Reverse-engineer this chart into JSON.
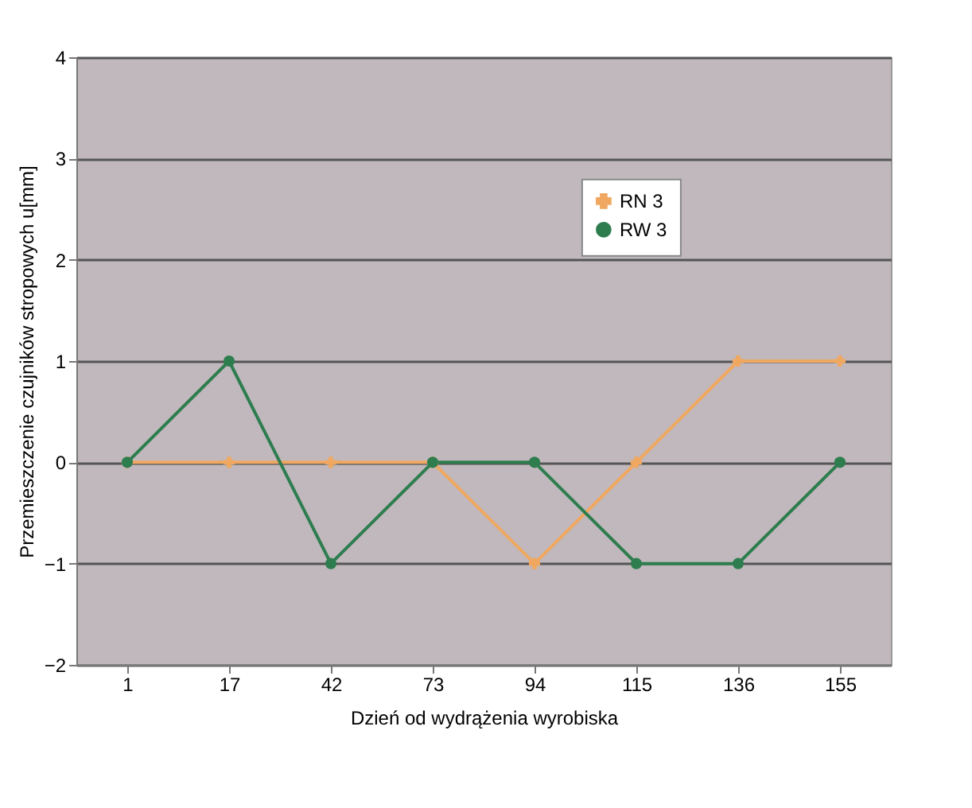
{
  "chart_data": {
    "type": "line",
    "xlabel": "Dzień od wydrążenia wyrobiska",
    "ylabel": "Przemieszczenie czujników stropowych u[mm]",
    "categories": [
      "1",
      "17",
      "42",
      "73",
      "94",
      "115",
      "136",
      "155"
    ],
    "series": [
      {
        "name": "RN 3",
        "color": "#f0a860",
        "marker": "cross",
        "values": [
          0,
          0,
          0,
          0,
          -1,
          0,
          1,
          1
        ]
      },
      {
        "name": "RW 3",
        "color": "#2e7d4f",
        "marker": "circle",
        "values": [
          0,
          1,
          -1,
          0,
          0,
          -1,
          -1,
          0
        ]
      }
    ],
    "ylim": [
      -2,
      4
    ],
    "yticks": [
      -2,
      -1,
      0,
      1,
      2,
      3,
      4
    ],
    "grid": "y",
    "legend": "top right"
  }
}
